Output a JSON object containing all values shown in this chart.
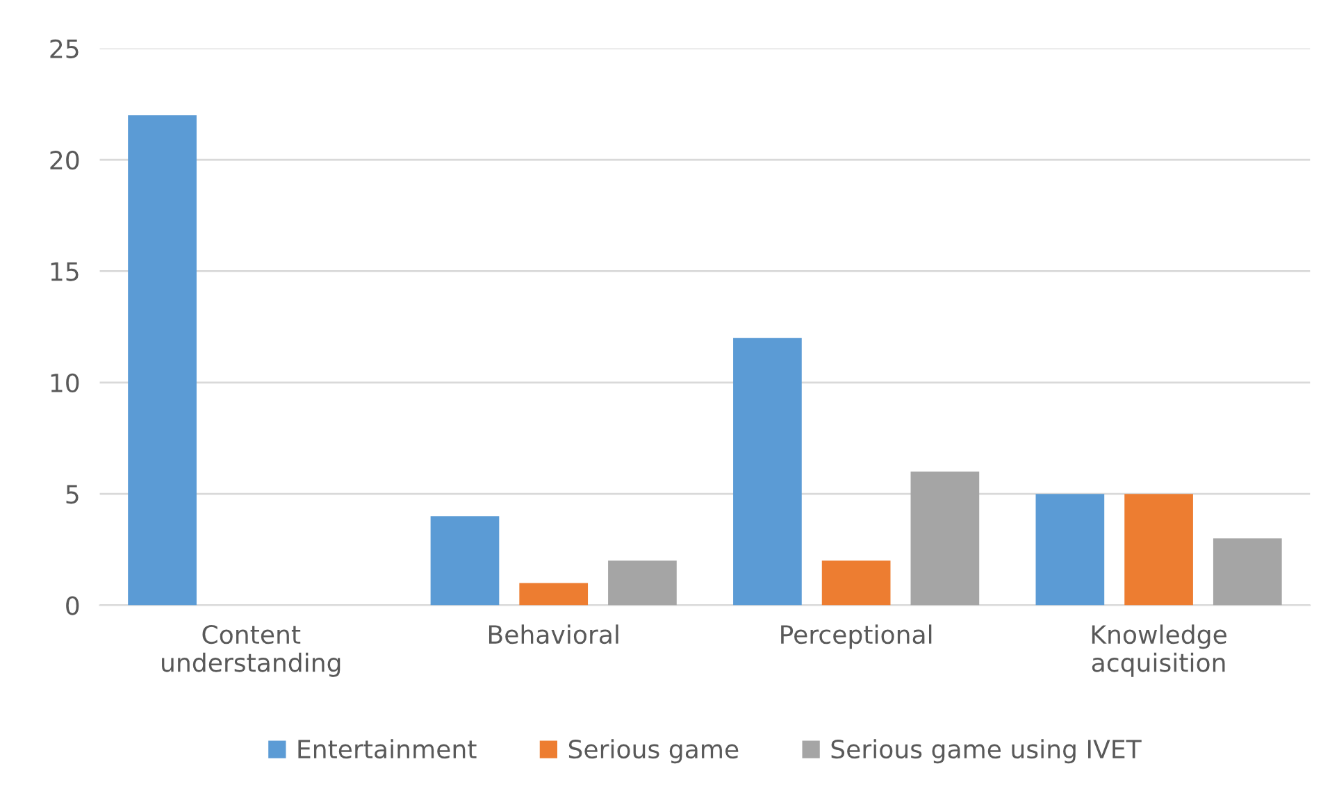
{
  "chart_data": {
    "type": "bar",
    "categories": [
      "Content\nunderstanding",
      "Behavioral",
      "Perceptional",
      "Knowledge\nacquisition"
    ],
    "series": [
      {
        "name": "Entertainment",
        "color": "#5b9bd5",
        "values": [
          22,
          4,
          12,
          5
        ]
      },
      {
        "name": "Serious game",
        "color": "#ed7d31",
        "values": [
          0,
          1,
          2,
          5
        ]
      },
      {
        "name": "Serious game using IVET",
        "color": "#a5a5a5",
        "values": [
          0,
          2,
          6,
          3
        ]
      }
    ],
    "ylim": [
      0,
      25
    ],
    "yticks": [
      0,
      5,
      10,
      15,
      20,
      25
    ],
    "grid": "y",
    "legend": "bottom"
  }
}
